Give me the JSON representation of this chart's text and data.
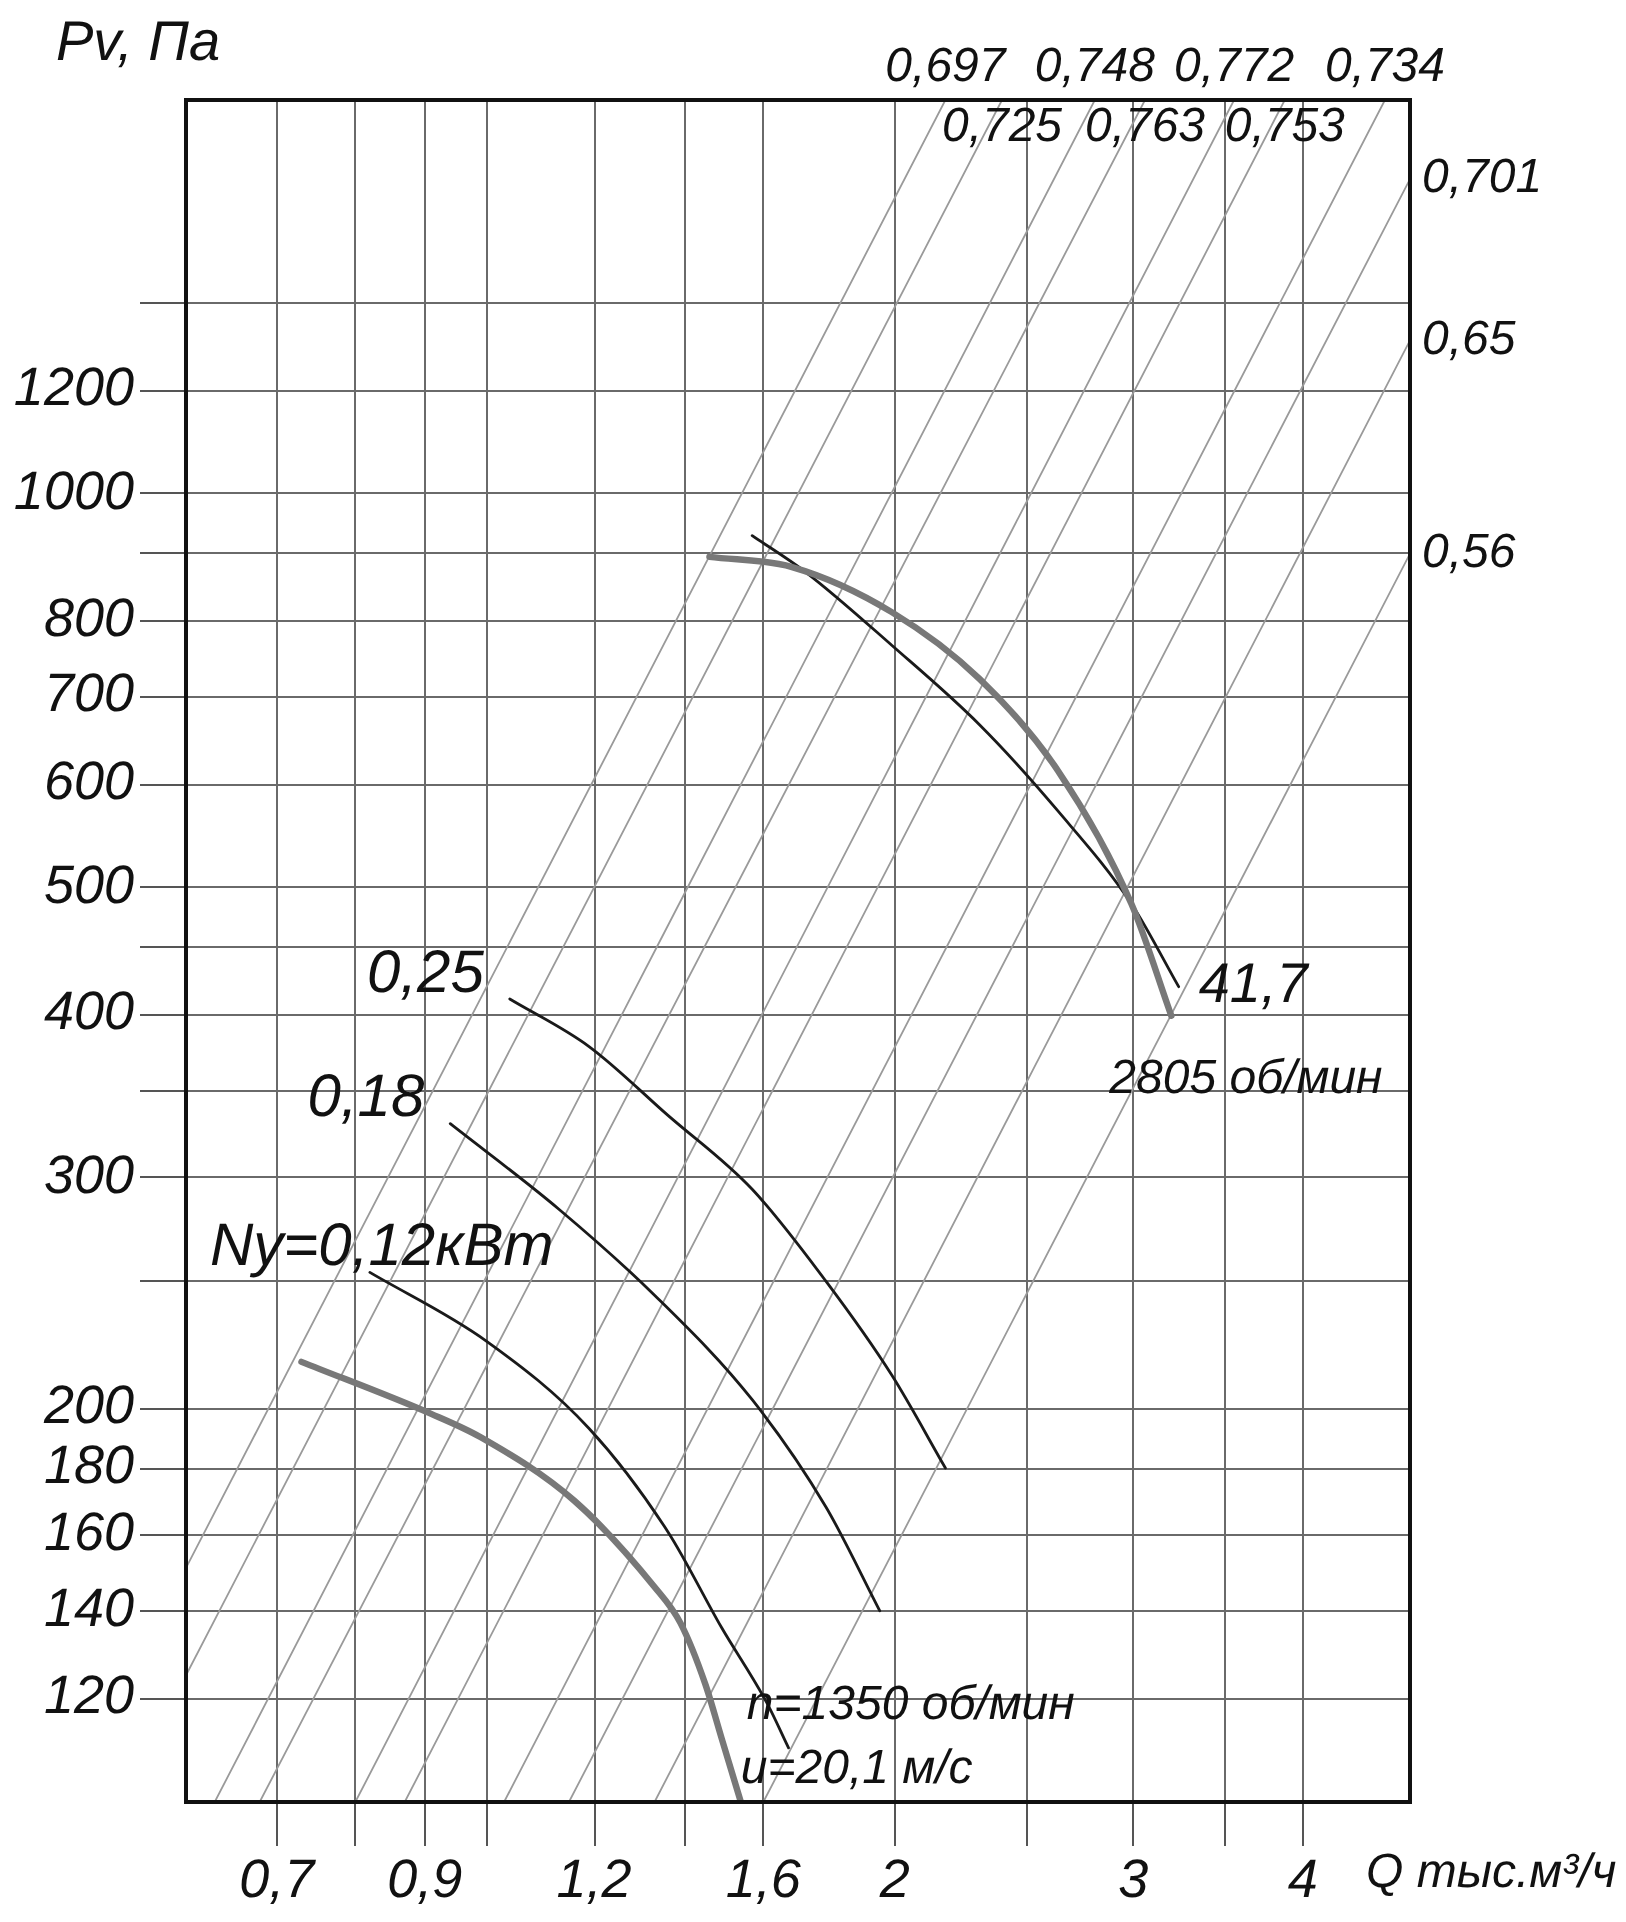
{
  "chart_data": {
    "type": "line",
    "xlabel": "Q тыс.м³/ч",
    "ylabel": "Pv, Па",
    "log": "xy",
    "grid": true,
    "xlim": [
      0.6,
      4.8
    ],
    "ylim": [
      100,
      2000
    ],
    "xticks": [
      {
        "value": 0.7,
        "label": "0,7"
      },
      {
        "value": 0.8,
        "label": null
      },
      {
        "value": 0.9,
        "label": "0,9"
      },
      {
        "value": 1,
        "label": null
      },
      {
        "value": 1.2,
        "label": "1,2"
      },
      {
        "value": 1.4,
        "label": null
      },
      {
        "value": 1.6,
        "label": "1,6"
      },
      2,
      {
        "value": 2.5,
        "label": null
      },
      3,
      {
        "value": 3.5,
        "label": null
      },
      4
    ],
    "yticks": [
      120,
      140,
      160,
      180,
      200,
      {
        "value": 250,
        "label": null
      },
      300,
      {
        "value": 350,
        "label": null
      },
      400,
      {
        "value": 450,
        "label": null
      },
      500,
      600,
      700,
      800,
      {
        "value": 900,
        "label": null
      },
      1000,
      1200,
      {
        "value": 1400,
        "label": null
      }
    ],
    "series": [
      {
        "color": "#787878",
        "x": [
          0.73,
          0.91,
          0.99,
          1.16,
          1.33,
          1.39,
          1.45,
          1.49,
          1.54
        ],
        "values": [
          217,
          198,
          190,
          170,
          146,
          137,
          123,
          112,
          100
        ]
      },
      {
        "name": "Ny=0,12кВт",
        "color": "#1a1a1a",
        "x": [
          0.82,
          1.0,
          1.19,
          1.36,
          1.49,
          1.61,
          1.67
        ],
        "values": [
          254,
          225,
          193,
          161,
          136,
          119,
          110
        ]
      },
      {
        "name": "0,18",
        "color": "#1a1a1a",
        "x": [
          0.94,
          1.13,
          1.33,
          1.57,
          1.78,
          1.95
        ],
        "values": [
          330,
          284,
          244,
          203,
          168,
          140
        ]
      },
      {
        "name": "0,25",
        "color": "#1a1a1a",
        "x": [
          1.04,
          1.19,
          1.36,
          1.57,
          1.78,
          1.99,
          2.18
        ],
        "values": [
          411,
          378,
          335,
          294,
          250,
          212,
          180
        ]
      },
      {
        "color": "#787878",
        "x": [
          1.46,
          1.68,
          1.99,
          2.31,
          2.64,
          2.99,
          3.2
        ],
        "values": [
          895,
          879,
          812,
          722,
          614,
          486,
          399
        ]
      },
      {
        "color": "#1a1a1a",
        "x": [
          1.57,
          1.72,
          1.99,
          2.31,
          2.64,
          2.99,
          3.24
        ],
        "values": [
          929,
          871,
          766,
          666,
          572,
          486,
          420
        ]
      },
      {
        "name": "0,697",
        "color": "#9a9a9a",
        "x": [
          0.6,
          2.18
        ],
        "values": [
          151,
          2000
        ]
      },
      {
        "name": "0,725",
        "color": "#9a9a9a",
        "x": [
          0.6,
          2.4
        ],
        "values": [
          125,
          2000
        ]
      },
      {
        "name": "0,748",
        "color": "#9a9a9a",
        "x": [
          0.63,
          2.81
        ],
        "values": [
          100,
          2000
        ]
      },
      {
        "name": "0,763",
        "color": "#9a9a9a",
        "x": [
          0.68,
          3.06
        ],
        "values": [
          100,
          2000
        ]
      },
      {
        "name": "0,772",
        "color": "#9a9a9a",
        "x": [
          0.8,
          3.56
        ],
        "values": [
          100,
          2000
        ]
      },
      {
        "name": "0,753",
        "color": "#9a9a9a",
        "x": [
          0.87,
          3.88
        ],
        "values": [
          100,
          2000
        ]
      },
      {
        "name": "0,734",
        "color": "#9a9a9a",
        "x": [
          1.03,
          4.6
        ],
        "values": [
          100,
          2000
        ]
      },
      {
        "name": "0,701",
        "color": "#9a9a9a",
        "x": [
          1.15,
          4.8
        ],
        "values": [
          100,
          1740
        ]
      },
      {
        "name": "0,65",
        "color": "#9a9a9a",
        "x": [
          1.33,
          4.8
        ],
        "values": [
          100,
          1310
        ]
      },
      {
        "name": "0,56",
        "color": "#9a9a9a",
        "x": [
          1.6,
          4.8
        ],
        "values": [
          100,
          900
        ]
      }
    ],
    "annotations": [
      {
        "text": "41,7",
        "x": 3.24,
        "y": 420
      },
      {
        "text": "2805 об/мин",
        "x": 3.2,
        "y": 399
      },
      {
        "text": "n=1350 об/мин",
        "x": 1.54,
        "y": 100
      },
      {
        "text": "u=20,1 м/с",
        "x": 1.54,
        "y": 100
      }
    ]
  }
}
